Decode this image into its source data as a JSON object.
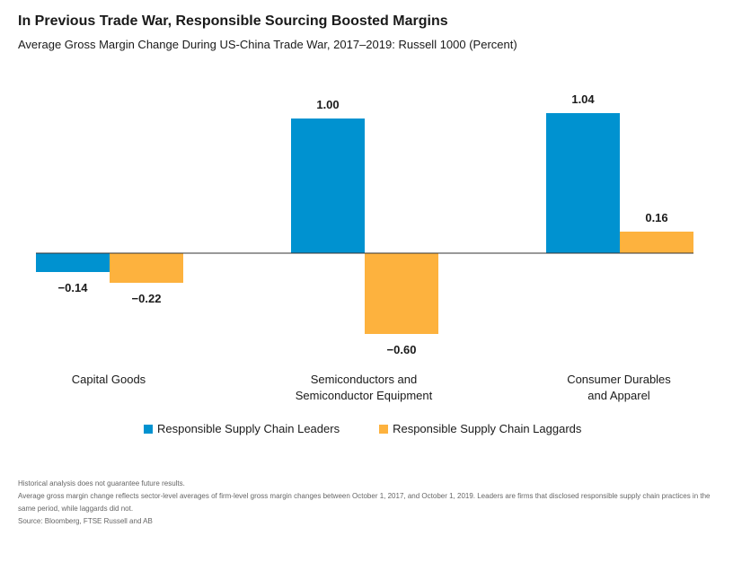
{
  "title": "In Previous Trade War, Responsible Sourcing Boosted Margins",
  "subtitle": "Average Gross Margin Change During US-China Trade War, 2017–2019: Russell 1000 (Percent)",
  "chart_data": {
    "type": "bar",
    "categories": [
      [
        "Capital Goods"
      ],
      [
        "Semiconductors and",
        "Semiconductor Equipment"
      ],
      [
        "Consumer Durables",
        "and Apparel"
      ]
    ],
    "series": [
      {
        "name": "Responsible Supply Chain Leaders",
        "color": "#0092D0",
        "values": [
          -0.14,
          1.0,
          1.04
        ],
        "labels": [
          "−0.14",
          "1.00",
          "1.04"
        ]
      },
      {
        "name": "Responsible Supply Chain Laggards",
        "color": "#FDB23E",
        "values": [
          -0.22,
          -0.6,
          0.16
        ],
        "labels": [
          "−0.22",
          "−0.60",
          "0.16"
        ]
      }
    ],
    "ylim": [
      -0.6,
      1.04
    ],
    "grid": false,
    "legend_position": "bottom"
  },
  "notes": [
    "Historical analysis does not guarantee future results.",
    "Average gross margin change reflects sector-level averages of firm-level gross margin changes between October 1, 2017, and October 1, 2019. Leaders are firms that disclosed responsible supply chain practices in the same period, while laggards did not.",
    "Source: Bloomberg, FTSE Russell and AB"
  ]
}
